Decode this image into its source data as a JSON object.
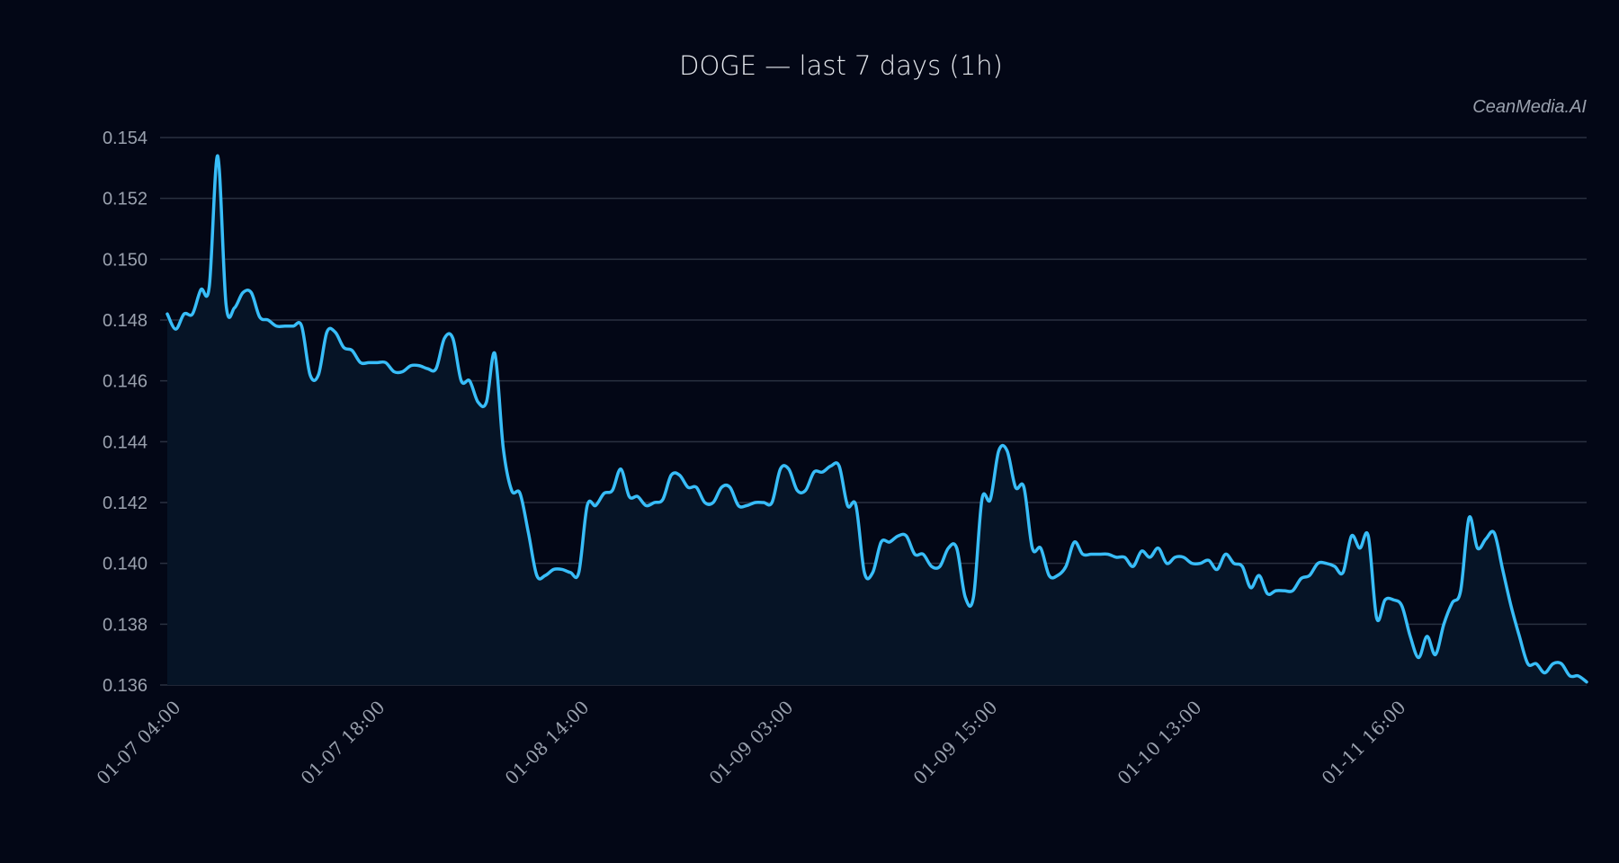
{
  "title": "DOGE — last 7 days (1h)",
  "watermark": "CeanMedia.AI",
  "colors": {
    "background": "#030716",
    "line": "#38bdf8",
    "fill": "#061426",
    "grid": "#2a3140",
    "tick_text": "#9aa1ae",
    "title_text": "#e6e9ef"
  },
  "chart_data": {
    "type": "line",
    "title": "DOGE — last 7 days (1h)",
    "xlabel": "",
    "ylabel": "",
    "ylim": [
      0.136,
      0.154
    ],
    "yticks": [
      0.136,
      0.138,
      0.14,
      0.142,
      0.144,
      0.146,
      0.148,
      0.15,
      0.152,
      0.154
    ],
    "ytick_labels": [
      "0.136",
      "0.138",
      "0.140",
      "0.142",
      "0.144",
      "0.146",
      "0.148",
      "0.150",
      "0.152",
      "0.154"
    ],
    "xtick_labels": [
      "01-07 04:00",
      "01-07 18:00",
      "01-08 14:00",
      "01-09 03:00",
      "01-09 15:00",
      "01-10 13:00",
      "01-11 16:00"
    ],
    "grid": true,
    "legend": null,
    "area_fill": true,
    "series": [
      {
        "name": "DOGE",
        "values": [
          0.1482,
          0.1477,
          0.1482,
          0.1482,
          0.149,
          0.1491,
          0.1534,
          0.1485,
          0.1484,
          0.1489,
          0.1489,
          0.1481,
          0.148,
          0.1478,
          0.1478,
          0.1478,
          0.1478,
          0.1462,
          0.1462,
          0.1476,
          0.1476,
          0.1471,
          0.147,
          0.1466,
          0.1466,
          0.1466,
          0.1466,
          0.1463,
          0.1463,
          0.1465,
          0.1465,
          0.1464,
          0.1464,
          0.1474,
          0.1474,
          0.146,
          0.146,
          0.1453,
          0.1453,
          0.1469,
          0.1438,
          0.1424,
          0.1423,
          0.141,
          0.1396,
          0.1396,
          0.1398,
          0.1398,
          0.1397,
          0.1397,
          0.1419,
          0.1419,
          0.1423,
          0.1424,
          0.1431,
          0.1422,
          0.1422,
          0.1419,
          0.142,
          0.1421,
          0.1429,
          0.1429,
          0.1425,
          0.1425,
          0.142,
          0.142,
          0.1425,
          0.1425,
          0.1419,
          0.1419,
          0.142,
          0.142,
          0.142,
          0.1431,
          0.1431,
          0.1424,
          0.1424,
          0.143,
          0.143,
          0.1432,
          0.1432,
          0.1419,
          0.1419,
          0.1397,
          0.1397,
          0.1407,
          0.1407,
          0.1409,
          0.1409,
          0.1403,
          0.1403,
          0.1399,
          0.1399,
          0.1405,
          0.1405,
          0.1389,
          0.1389,
          0.1421,
          0.1421,
          0.1437,
          0.1437,
          0.1425,
          0.1425,
          0.1405,
          0.1405,
          0.1396,
          0.1396,
          0.1399,
          0.1407,
          0.1403,
          0.1403,
          0.1403,
          0.1403,
          0.1402,
          0.1402,
          0.1399,
          0.1404,
          0.1402,
          0.1405,
          0.14,
          0.1402,
          0.1402,
          0.14,
          0.14,
          0.1401,
          0.1398,
          0.1403,
          0.14,
          0.1399,
          0.1392,
          0.1396,
          0.139,
          0.1391,
          0.1391,
          0.1391,
          0.1395,
          0.1396,
          0.14,
          0.14,
          0.1399,
          0.1397,
          0.1409,
          0.1405,
          0.1409,
          0.1382,
          0.1388,
          0.1388,
          0.1386,
          0.1376,
          0.1369,
          0.1376,
          0.137,
          0.138,
          0.1387,
          0.1391,
          0.1415,
          0.1405,
          0.1408,
          0.141,
          0.1398,
          0.1386,
          0.1376,
          0.1367,
          0.1367,
          0.1364,
          0.1367,
          0.1367,
          0.1363,
          0.1363,
          0.1361
        ]
      }
    ]
  }
}
